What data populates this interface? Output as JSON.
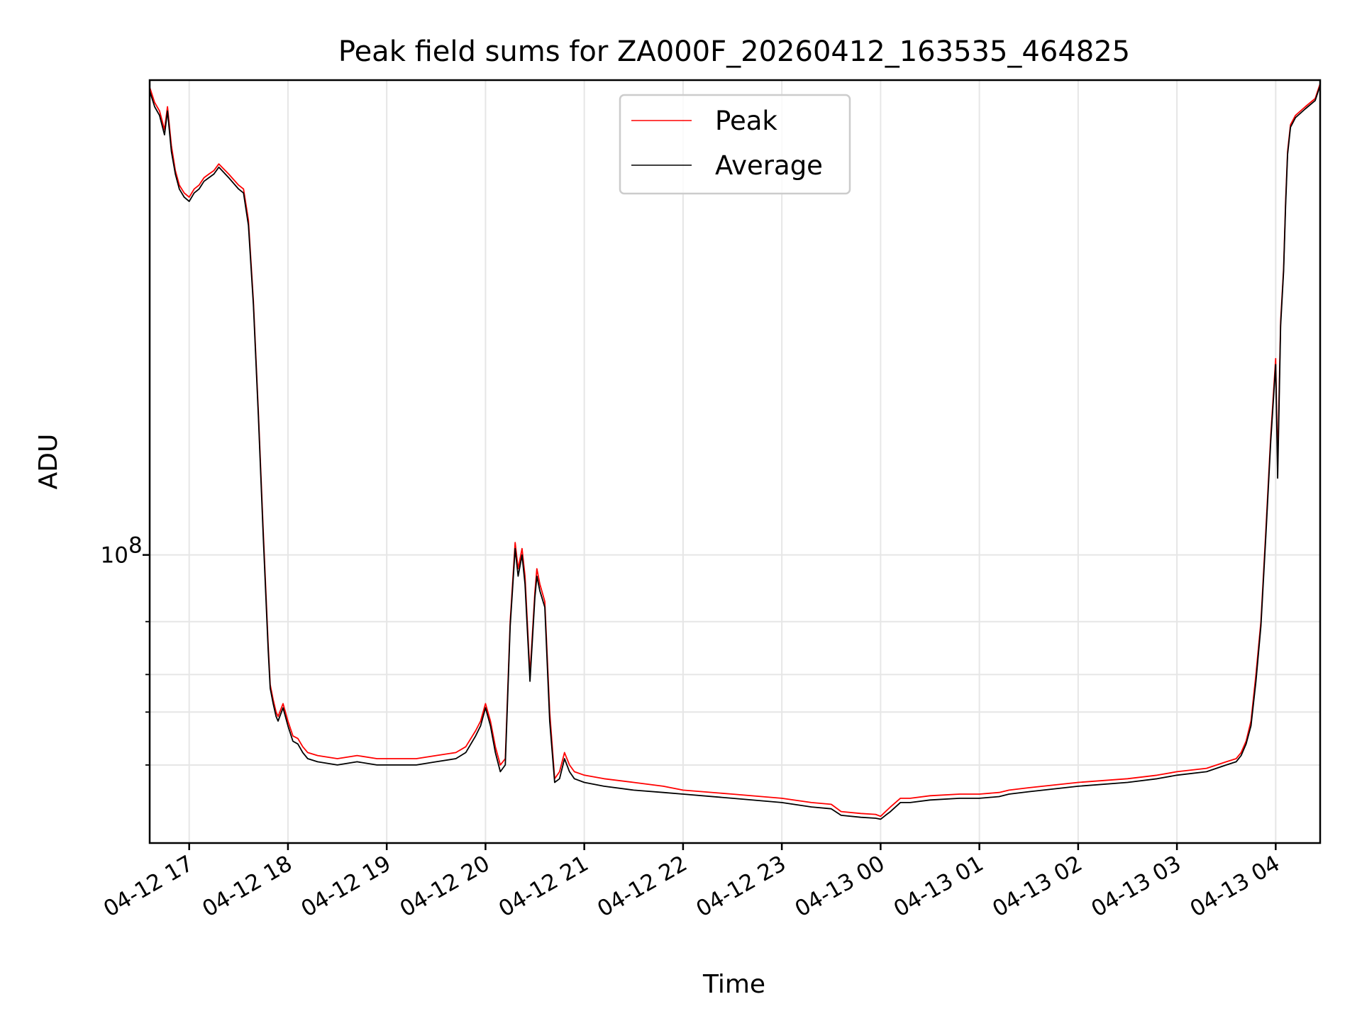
{
  "chart_data": {
    "type": "line",
    "title": "Peak field sums for ZA000F_20260412_163535_464825",
    "xlabel": "Time",
    "ylabel": "ADU",
    "yscale": "log",
    "ylim": [
      11000000,
      3800000000
    ],
    "xlim_hours": [
      -0.4,
      11.45
    ],
    "x_unit": "hours since 2026-04-12 17:00",
    "grid": true,
    "legend_position": "upper-center",
    "x_ticks": [
      {
        "value": 0,
        "label": "04-12 17"
      },
      {
        "value": 1,
        "label": "04-12 18"
      },
      {
        "value": 2,
        "label": "04-12 19"
      },
      {
        "value": 3,
        "label": "04-12 20"
      },
      {
        "value": 4,
        "label": "04-12 21"
      },
      {
        "value": 5,
        "label": "04-12 22"
      },
      {
        "value": 6,
        "label": "04-12 23"
      },
      {
        "value": 7,
        "label": "04-13 00"
      },
      {
        "value": 8,
        "label": "04-13 01"
      },
      {
        "value": 9,
        "label": "04-13 02"
      },
      {
        "value": 10,
        "label": "04-13 03"
      },
      {
        "value": 11,
        "label": "04-13 04"
      }
    ],
    "y_major_ticks": [
      {
        "value": 100000000,
        "base": "10",
        "exp": "8"
      }
    ],
    "y_minor_ticks": [
      20000000,
      30000000,
      40000000,
      60000000
    ],
    "series": [
      {
        "name": "Peak",
        "color": "#ff0000",
        "x": [
          -0.4,
          -0.35,
          -0.3,
          -0.25,
          -0.22,
          -0.18,
          -0.14,
          -0.1,
          -0.05,
          0,
          0.05,
          0.1,
          0.15,
          0.2,
          0.25,
          0.3,
          0.4,
          0.5,
          0.55,
          0.6,
          0.65,
          0.7,
          0.75,
          0.8,
          0.82,
          0.85,
          0.88,
          0.9,
          0.95,
          1.0,
          1.05,
          1.1,
          1.15,
          1.2,
          1.3,
          1.5,
          1.7,
          1.9,
          2.1,
          2.3,
          2.5,
          2.7,
          2.8,
          2.9,
          2.95,
          3.0,
          3.05,
          3.1,
          3.15,
          3.2,
          3.25,
          3.3,
          3.33,
          3.37,
          3.4,
          3.45,
          3.5,
          3.52,
          3.55,
          3.6,
          3.65,
          3.7,
          3.75,
          3.8,
          3.85,
          3.9,
          4.0,
          4.2,
          4.5,
          4.8,
          5.0,
          5.5,
          6.0,
          6.3,
          6.5,
          6.6,
          6.8,
          6.95,
          7.0,
          7.05,
          7.1,
          7.2,
          7.3,
          7.5,
          7.8,
          8.0,
          8.2,
          8.3,
          8.5,
          9.0,
          9.5,
          9.8,
          10.0,
          10.3,
          10.5,
          10.6,
          10.65,
          10.7,
          10.75,
          10.8,
          10.85,
          10.9,
          10.95,
          11.0,
          11.02,
          11.05,
          11.08,
          11.1,
          11.12,
          11.15,
          11.2,
          11.3,
          11.4,
          11.45
        ],
        "y": [
          3600000000,
          3200000000,
          3000000000,
          2600000000,
          3100000000,
          2300000000,
          1900000000,
          1700000000,
          1600000000,
          1550000000,
          1650000000,
          1700000000,
          1800000000,
          1850000000,
          1900000000,
          2000000000,
          1850000000,
          1700000000,
          1650000000,
          1300000000,
          700000000,
          300000000,
          120000000,
          50000000,
          37000000,
          33000000,
          30000000,
          29000000,
          32000000,
          28000000,
          25000000,
          24500000,
          23000000,
          22000000,
          21500000,
          21000000,
          21500000,
          21000000,
          21000000,
          21000000,
          21500000,
          22000000,
          23000000,
          26000000,
          28000000,
          32000000,
          28000000,
          23000000,
          20000000,
          21000000,
          60000000,
          110000000,
          90000000,
          105000000,
          85000000,
          40000000,
          75000000,
          90000000,
          80000000,
          70000000,
          30000000,
          18000000,
          19000000,
          22000000,
          20000000,
          19000000,
          18500000,
          18000000,
          17500000,
          17000000,
          16500000,
          16000000,
          15500000,
          15000000,
          14800000,
          14000000,
          13800000,
          13700000,
          13500000,
          14000000,
          14500000,
          15500000,
          15500000,
          15800000,
          16000000,
          16000000,
          16200000,
          16500000,
          16800000,
          17500000,
          18000000,
          18500000,
          19000000,
          19500000,
          20500000,
          21000000,
          22000000,
          24000000,
          28000000,
          40000000,
          60000000,
          120000000,
          250000000,
          450000000,
          200000000,
          600000000,
          900000000,
          1500000000,
          2200000000,
          2700000000,
          2900000000,
          3100000000,
          3300000000,
          3700000000
        ]
      },
      {
        "name": "Average",
        "color": "#000000",
        "x": [
          -0.4,
          -0.35,
          -0.3,
          -0.25,
          -0.22,
          -0.18,
          -0.14,
          -0.1,
          -0.05,
          0,
          0.05,
          0.1,
          0.15,
          0.2,
          0.25,
          0.3,
          0.4,
          0.5,
          0.55,
          0.6,
          0.65,
          0.7,
          0.75,
          0.8,
          0.82,
          0.85,
          0.88,
          0.9,
          0.95,
          1.0,
          1.05,
          1.1,
          1.15,
          1.2,
          1.3,
          1.5,
          1.7,
          1.9,
          2.1,
          2.3,
          2.5,
          2.7,
          2.8,
          2.9,
          2.95,
          3.0,
          3.05,
          3.1,
          3.15,
          3.2,
          3.25,
          3.3,
          3.33,
          3.37,
          3.4,
          3.45,
          3.5,
          3.52,
          3.55,
          3.6,
          3.65,
          3.7,
          3.75,
          3.8,
          3.85,
          3.9,
          4.0,
          4.2,
          4.5,
          4.8,
          5.0,
          5.5,
          6.0,
          6.3,
          6.5,
          6.6,
          6.8,
          6.95,
          7.0,
          7.05,
          7.1,
          7.2,
          7.3,
          7.5,
          7.8,
          8.0,
          8.2,
          8.3,
          8.5,
          9.0,
          9.5,
          9.8,
          10.0,
          10.3,
          10.5,
          10.6,
          10.65,
          10.7,
          10.75,
          10.8,
          10.85,
          10.9,
          10.95,
          11.0,
          11.02,
          11.05,
          11.08,
          11.1,
          11.12,
          11.15,
          11.2,
          11.3,
          11.4,
          11.45
        ],
        "y": [
          3500000000,
          3100000000,
          2900000000,
          2500000000,
          3000000000,
          2200000000,
          1850000000,
          1650000000,
          1550000000,
          1500000000,
          1600000000,
          1650000000,
          1750000000,
          1800000000,
          1850000000,
          1950000000,
          1800000000,
          1650000000,
          1600000000,
          1250000000,
          680000000,
          290000000,
          115000000,
          48000000,
          36000000,
          32000000,
          29000000,
          28000000,
          31000000,
          27000000,
          24000000,
          23500000,
          22000000,
          21000000,
          20500000,
          20000000,
          20500000,
          20000000,
          20000000,
          20000000,
          20500000,
          21000000,
          22000000,
          25000000,
          27000000,
          31000000,
          27000000,
          22000000,
          19000000,
          20000000,
          58000000,
          105000000,
          85000000,
          100000000,
          80000000,
          38000000,
          72000000,
          85000000,
          76000000,
          67000000,
          28000000,
          17500000,
          18000000,
          21000000,
          19000000,
          18000000,
          17500000,
          17000000,
          16500000,
          16200000,
          16000000,
          15500000,
          15000000,
          14500000,
          14300000,
          13600000,
          13400000,
          13300000,
          13200000,
          13600000,
          14000000,
          15000000,
          15000000,
          15300000,
          15500000,
          15500000,
          15700000,
          16000000,
          16300000,
          17000000,
          17500000,
          18000000,
          18500000,
          19000000,
          20000000,
          20500000,
          21500000,
          23500000,
          27000000,
          38000000,
          58000000,
          115000000,
          240000000,
          430000000,
          180000000,
          580000000,
          880000000,
          1450000000,
          2150000000,
          2650000000,
          2850000000,
          3050000000,
          3250000000,
          3650000000
        ]
      }
    ]
  }
}
